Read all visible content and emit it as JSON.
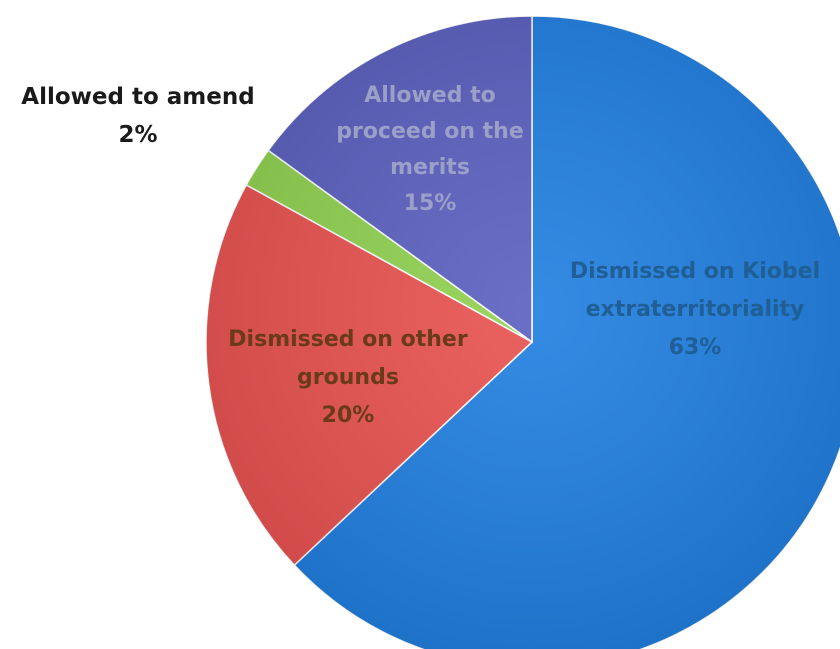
{
  "chart_data": {
    "type": "pie",
    "title": "",
    "slices": [
      {
        "label_lines": [
          "Dismissed on Kiobel",
          "extraterritoriality",
          "63%"
        ],
        "value": 63,
        "color": "#1f7ee0",
        "label_color": "#1f5f96"
      },
      {
        "label_lines": [
          "Dismissed on other",
          "grounds",
          "20%"
        ],
        "value": 20,
        "color": "#e8514f",
        "label_color": "#6a3a1a"
      },
      {
        "label_lines": [
          "Allowed to amend",
          "2%"
        ],
        "value": 2,
        "color": "#8fd14f",
        "label_color": "#1a1a1a"
      },
      {
        "label_lines": [
          "Allowed to",
          "proceed on the",
          "merits",
          "15%"
        ],
        "value": 15,
        "color": "#5a5fbf",
        "label_color": "#9aa0c8"
      }
    ]
  }
}
